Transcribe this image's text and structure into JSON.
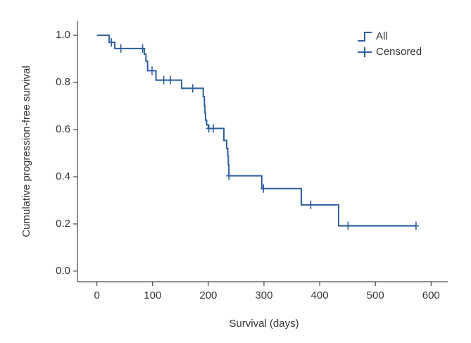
{
  "chart_data": {
    "type": "step",
    "xlabel": "Survival (days)",
    "ylabel": "Cumulative progression-free survival",
    "xlim": [
      -35,
      630
    ],
    "ylim": [
      -0.045,
      1.06
    ],
    "xticks": [
      0,
      100,
      200,
      300,
      400,
      500,
      600
    ],
    "yticks": [
      {
        "value": 0,
        "label": "0.0"
      },
      0.2,
      0.4,
      0.6,
      0.8,
      {
        "value": 1,
        "label": "1.0"
      }
    ],
    "legend": "top-right",
    "series": [
      {
        "name": "All",
        "color": "#2b5f9e",
        "x": [
          0,
          22,
          32,
          85,
          88,
          91,
          106,
          152,
          191,
          193,
          194,
          195,
          197,
          200,
          228,
          233,
          235,
          236,
          237,
          296,
          367,
          434,
          573
        ],
        "values": [
          1.0,
          0.97,
          0.944,
          0.92,
          0.89,
          0.85,
          0.81,
          0.775,
          0.74,
          0.7,
          0.67,
          0.64,
          0.62,
          0.605,
          0.554,
          0.52,
          0.49,
          0.45,
          0.404,
          0.35,
          0.281,
          0.192,
          0.192
        ]
      },
      {
        "name": "Censored",
        "color": "#2b5f9e",
        "x": [
          26,
          43,
          82,
          99,
          120,
          132,
          172,
          201,
          209,
          237,
          299,
          384,
          451,
          573
        ],
        "values": [
          0.97,
          0.944,
          0.944,
          0.85,
          0.81,
          0.81,
          0.775,
          0.605,
          0.605,
          0.404,
          0.35,
          0.281,
          0.192,
          0.192
        ]
      }
    ]
  }
}
